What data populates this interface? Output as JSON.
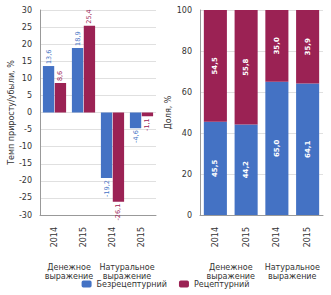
{
  "chart_data": [
    {
      "type": "bar",
      "y_label": "Темп приросту/убыли, %",
      "categories": [
        "2014",
        "2015",
        "2014",
        "2015"
      ],
      "annotations": [
        "Денежное\nвыражение",
        "Натуральное\nвыражение"
      ],
      "series": [
        {
          "name": "Безрецептурний",
          "color": "#4472C4",
          "values": [
            13.6,
            18.9,
            -19.2,
            -4.6
          ],
          "value_labels": [
            "13,6",
            "18,9",
            "-19,2",
            "-4,6"
          ]
        },
        {
          "name": "Рецептурний",
          "color": "#9B2254",
          "values": [
            8.6,
            25.4,
            -26.1,
            -1.1
          ],
          "value_labels": [
            "8,6",
            "25,4",
            "-26,1",
            "-1,1"
          ]
        }
      ],
      "ylim": [
        -30,
        30
      ],
      "yticks": [
        -30,
        -25,
        -20,
        -15,
        -10,
        -5,
        0,
        5,
        10,
        15,
        20,
        25,
        30
      ],
      "grid": true,
      "data_labels": true,
      "legend": "bottom"
    },
    {
      "type": "bar",
      "y_label": "Доля, %",
      "categories": [
        "2014",
        "2015",
        "2014",
        "2015"
      ],
      "annotations": [
        "Денежное\nвыражение",
        "Натуральное\nвыражение"
      ],
      "series": [
        {
          "name": "Безрецептурний",
          "color": "#4472C4",
          "values": [
            45.5,
            44.2,
            65.0,
            64.1
          ],
          "value_labels": [
            "45,5",
            "44,2",
            "65,0",
            "64,1"
          ]
        },
        {
          "name": "Рецептурний",
          "color": "#9B2254",
          "values": [
            54.5,
            55.8,
            35.0,
            35.9
          ],
          "value_labels": [
            "54,5",
            "55,8",
            "35,0",
            "35,9"
          ]
        }
      ],
      "ylim": [
        0,
        100
      ],
      "yticks": [
        0,
        20,
        40,
        60,
        80,
        100
      ],
      "grid": true,
      "stacked": true,
      "data_labels": true
    }
  ]
}
